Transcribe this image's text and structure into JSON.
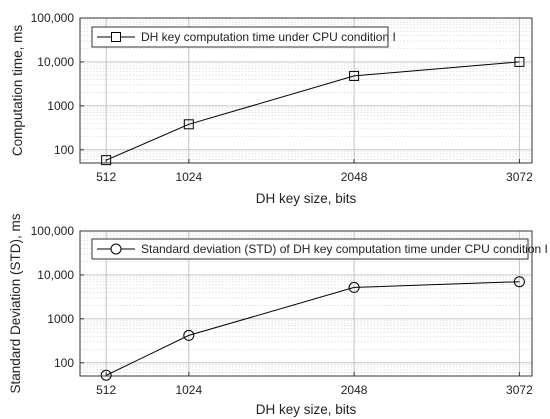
{
  "chart_data": [
    {
      "type": "line",
      "x": [
        512,
        1024,
        2048,
        3072
      ],
      "xticks": [
        "512",
        "1024",
        "2048",
        "3072"
      ],
      "xlim": [
        350,
        3150
      ],
      "yscale": "log",
      "ylim": [
        50,
        100000
      ],
      "yticks": [
        100,
        1000,
        10000,
        100000
      ],
      "ytick_labels": [
        "100",
        "1000",
        "10,000",
        "100,000"
      ],
      "xlabel": "DH key size, bits",
      "ylabel": "Computation time, ms",
      "grid": true,
      "legend_position": "top-left",
      "series": [
        {
          "name": "DH key computation time under CPU condition I",
          "marker": "square",
          "values": [
            58,
            380,
            4800,
            10000
          ]
        }
      ]
    },
    {
      "type": "line",
      "x": [
        512,
        1024,
        2048,
        3072
      ],
      "xticks": [
        "512",
        "1024",
        "2048",
        "3072"
      ],
      "xlim": [
        350,
        3150
      ],
      "yscale": "log",
      "ylim": [
        50,
        100000
      ],
      "yticks": [
        100,
        1000,
        10000,
        100000
      ],
      "ytick_labels": [
        "100",
        "1000",
        "10,000",
        "100,000"
      ],
      "xlabel": "DH key size, bits",
      "ylabel": "Standard Deviation (STD), ms",
      "grid": true,
      "legend_position": "top-left",
      "series": [
        {
          "name": "Standard deviation (STD) of DH key computation time under CPU condition I",
          "marker": "circle",
          "values": [
            52,
            420,
            5200,
            7000
          ]
        }
      ]
    }
  ]
}
